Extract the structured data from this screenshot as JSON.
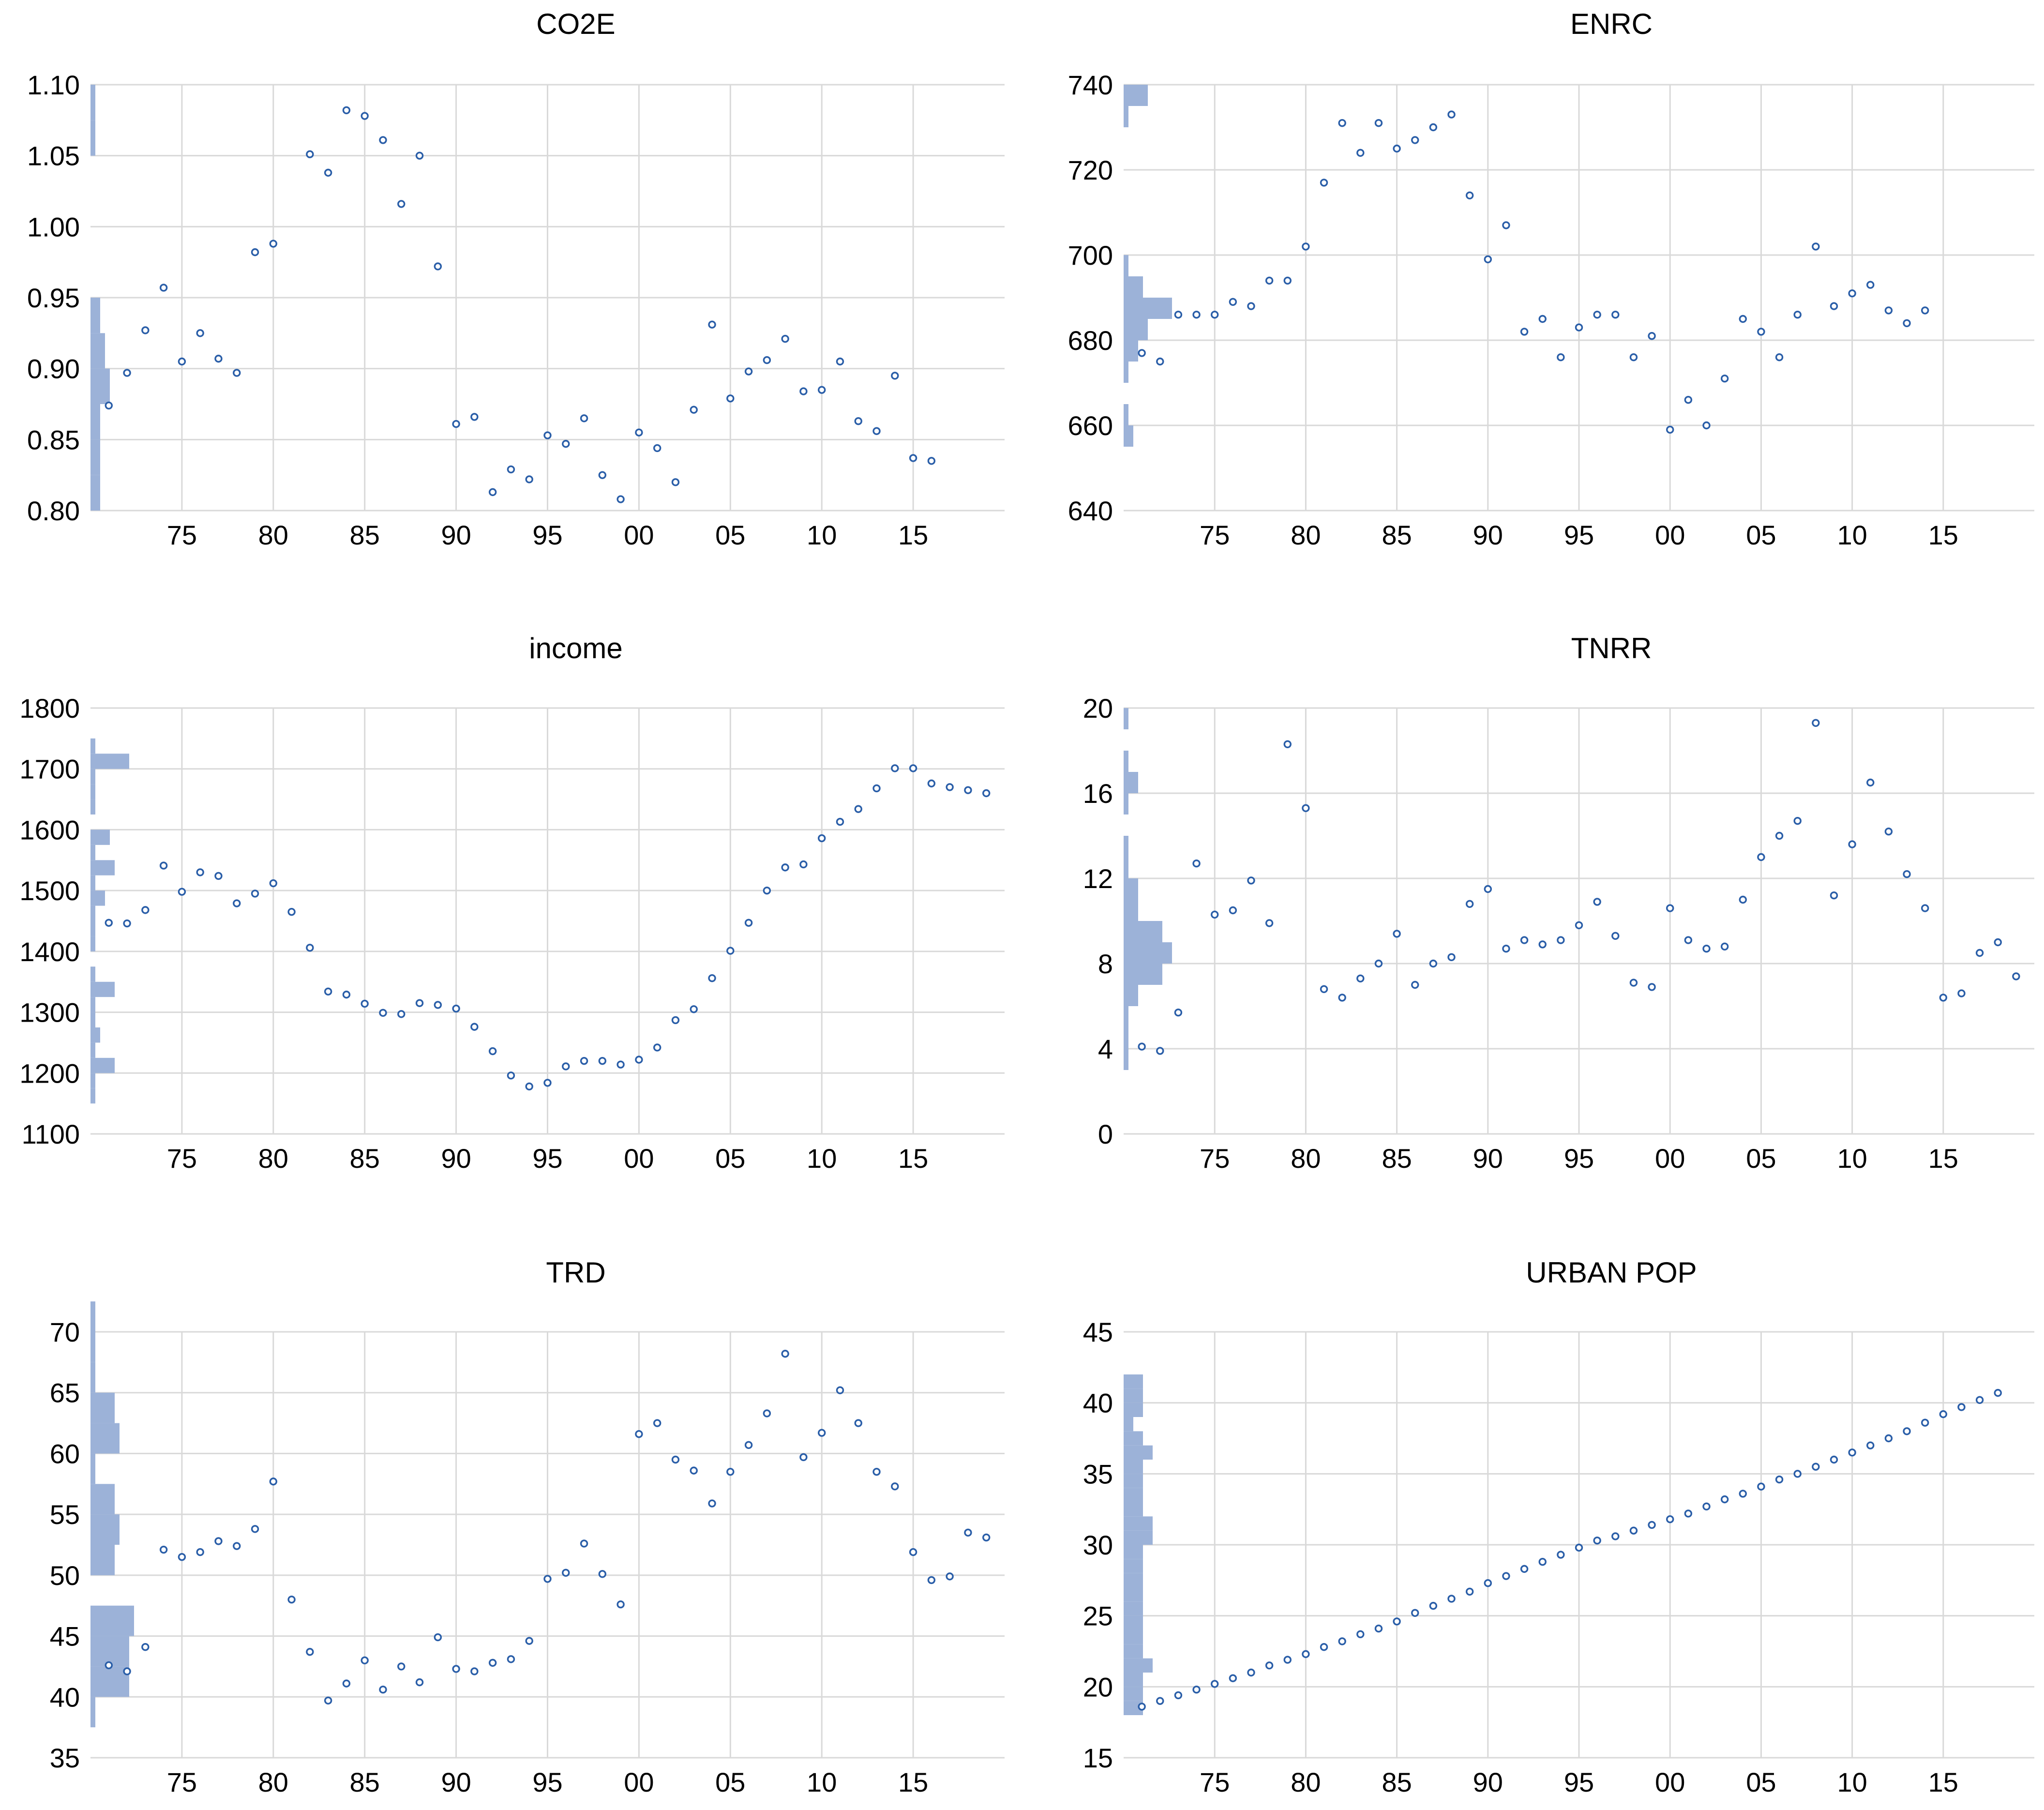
{
  "figure": {
    "style": {
      "point_color": "#2a5ea8",
      "hist_color": "#9cb2d8",
      "grid_color": "#d9d9d9",
      "background": "#ffffff"
    }
  },
  "chart_data": [
    {
      "id": "co2e",
      "type": "scatter",
      "title": "CO2E",
      "x_tick_labels": [
        "75",
        "80",
        "85",
        "90",
        "95",
        "00",
        "05",
        "10",
        "15"
      ],
      "x_tick_years": [
        1975,
        1980,
        1985,
        1990,
        1995,
        2000,
        2005,
        2010,
        2015
      ],
      "y_tick_labels": [
        "0.80",
        "0.85",
        "0.90",
        "0.95",
        "1.00",
        "1.05",
        "1.10"
      ],
      "ylim": [
        0.8,
        1.1
      ],
      "histogram_bins": {
        "start": 0.8,
        "width": 0.025,
        "counts": [
          2,
          2,
          2,
          4,
          3,
          2,
          0,
          0,
          0,
          0,
          1,
          1
        ]
      },
      "series": [
        {
          "name": "CO2E",
          "x": [
            1971,
            1972,
            1973,
            1974,
            1975,
            1976,
            1977,
            1978,
            1979,
            1980,
            1981,
            1982,
            1983,
            1984,
            1985,
            1986,
            1987,
            1988,
            1989,
            1990,
            1991,
            1992,
            1993,
            1994,
            1995,
            1996,
            1997,
            1998,
            1999,
            2000,
            2001,
            2002,
            2003,
            2004,
            2005,
            2006,
            2007,
            2008,
            2009,
            2010,
            2011,
            2012,
            2013,
            2014,
            2015,
            2016
          ],
          "y": [
            0.874,
            0.897,
            0.927,
            0.957,
            0.905,
            0.925,
            0.907,
            0.897,
            0.982,
            0.988,
            null,
            1.051,
            1.038,
            1.082,
            1.078,
            1.061,
            1.016,
            1.05,
            0.972,
            0.861,
            0.866,
            0.813,
            0.829,
            0.822,
            0.853,
            0.847,
            0.865,
            0.825,
            0.808,
            0.855,
            0.844,
            0.82,
            0.871,
            0.931,
            0.879,
            0.898,
            0.906,
            0.921,
            0.884,
            0.885,
            0.905,
            0.863,
            0.856,
            0.895,
            0.837,
            0.835
          ]
        }
      ]
    },
    {
      "id": "enrc",
      "type": "scatter",
      "title": "ENRC",
      "x_tick_labels": [
        "75",
        "80",
        "85",
        "90",
        "95",
        "00",
        "05",
        "10",
        "15"
      ],
      "x_tick_years": [
        1975,
        1980,
        1985,
        1990,
        1995,
        2000,
        2005,
        2010,
        2015
      ],
      "y_tick_labels": [
        "640",
        "660",
        "680",
        "700",
        "720",
        "740"
      ],
      "ylim": [
        640,
        740
      ],
      "histogram_bins": {
        "start": 655,
        "width": 5,
        "counts": [
          2,
          1,
          0,
          1,
          3,
          5,
          10,
          4,
          1,
          0,
          0,
          0,
          0,
          0,
          0,
          1,
          5
        ]
      },
      "series": [
        {
          "name": "ENRC",
          "x": [
            1971,
            1972,
            1973,
            1974,
            1975,
            1976,
            1977,
            1978,
            1979,
            1980,
            1981,
            1982,
            1983,
            1984,
            1985,
            1986,
            1987,
            1988,
            1989,
            1990,
            1991,
            1992,
            1993,
            1994,
            1995,
            1996,
            1997,
            1998,
            1999,
            2000,
            2001,
            2002,
            2003,
            2004,
            2005,
            2006,
            2007,
            2008,
            2009,
            2010,
            2011,
            2012,
            2013,
            2014
          ],
          "y": [
            677,
            675,
            686,
            686,
            686,
            689,
            688,
            694,
            694,
            702,
            717,
            731,
            724,
            731,
            725,
            727,
            730,
            733,
            714,
            699,
            707,
            682,
            685,
            676,
            683,
            686,
            686,
            676,
            681,
            659,
            666,
            660,
            671,
            685,
            682,
            676,
            686,
            702,
            688,
            691,
            693,
            687,
            684,
            687
          ]
        }
      ]
    },
    {
      "id": "income",
      "type": "scatter",
      "title": "income",
      "x_tick_labels": [
        "75",
        "80",
        "85",
        "90",
        "95",
        "00",
        "05",
        "10",
        "15"
      ],
      "x_tick_years": [
        1975,
        1980,
        1985,
        1990,
        1995,
        2000,
        2005,
        2010,
        2015
      ],
      "y_tick_labels": [
        "1100",
        "1200",
        "1300",
        "1400",
        "1500",
        "1600",
        "1700",
        "1800"
      ],
      "ylim": [
        1100,
        1800
      ],
      "histogram_bins": {
        "start": 1150,
        "width": 25,
        "counts": [
          1,
          1,
          5,
          1,
          2,
          1,
          1,
          5,
          1,
          0,
          1,
          1,
          1,
          3,
          1,
          5,
          1,
          4,
          0,
          1,
          1,
          1,
          8,
          1
        ]
      },
      "series": [
        {
          "name": "income",
          "x": [
            1971,
            1972,
            1973,
            1974,
            1975,
            1976,
            1977,
            1978,
            1979,
            1980,
            1981,
            1982,
            1983,
            1984,
            1985,
            1986,
            1987,
            1988,
            1989,
            1990,
            1991,
            1992,
            1993,
            1994,
            1995,
            1996,
            1997,
            1998,
            1999,
            2000,
            2001,
            2002,
            2003,
            2004,
            2005,
            2006,
            2007,
            2008,
            2009,
            2010,
            2011,
            2012,
            2013,
            2014,
            2015,
            2016,
            2017,
            2018,
            2019
          ],
          "y": [
            1447,
            1446,
            1468,
            1541,
            1498,
            1530,
            1524,
            1479,
            1495,
            1512,
            1465,
            1406,
            1334,
            1329,
            1314,
            1299,
            1297,
            1315,
            1312,
            1306,
            1276,
            1236,
            1196,
            1178,
            1184,
            1211,
            1220,
            1220,
            1214,
            1222,
            1242,
            1287,
            1305,
            1356,
            1401,
            1447,
            1500,
            1538,
            1543,
            1586,
            1613,
            1634,
            1668,
            1701,
            1701,
            1676,
            1670,
            1665,
            1660
          ]
        }
      ]
    },
    {
      "id": "tnrr",
      "type": "scatter",
      "title": "TNRR",
      "x_tick_labels": [
        "75",
        "80",
        "85",
        "90",
        "95",
        "00",
        "05",
        "10",
        "15"
      ],
      "x_tick_years": [
        1975,
        1980,
        1985,
        1990,
        1995,
        2000,
        2005,
        2010,
        2015
      ],
      "y_tick_labels": [
        "0",
        "4",
        "8",
        "12",
        "16",
        "20"
      ],
      "ylim": [
        0,
        20
      ],
      "histogram_bins": {
        "start": 3,
        "width": 1,
        "counts": [
          1,
          1,
          1,
          3,
          8,
          10,
          8,
          3,
          3,
          1,
          1,
          0,
          1,
          3,
          1,
          0,
          1
        ]
      },
      "series": [
        {
          "name": "TNRR",
          "x": [
            1971,
            1972,
            1973,
            1974,
            1975,
            1976,
            1977,
            1978,
            1979,
            1980,
            1981,
            1982,
            1983,
            1984,
            1985,
            1986,
            1987,
            1988,
            1989,
            1990,
            1991,
            1992,
            1993,
            1994,
            1995,
            1996,
            1997,
            1998,
            1999,
            2000,
            2001,
            2002,
            2003,
            2004,
            2005,
            2006,
            2007,
            2008,
            2009,
            2010,
            2011,
            2012,
            2013,
            2014,
            2015,
            2016,
            2017,
            2018,
            2019
          ],
          "y": [
            4.1,
            3.9,
            5.7,
            12.7,
            10.3,
            10.5,
            11.9,
            9.9,
            18.3,
            15.3,
            6.8,
            6.4,
            7.3,
            8.0,
            9.4,
            7.0,
            8.0,
            8.3,
            10.8,
            11.5,
            8.7,
            9.1,
            8.9,
            9.1,
            9.8,
            10.9,
            9.3,
            7.1,
            6.9,
            10.6,
            9.1,
            8.7,
            8.8,
            11.0,
            13.0,
            14.0,
            14.7,
            19.3,
            11.2,
            13.6,
            16.5,
            14.2,
            12.2,
            10.6,
            6.4,
            6.6,
            8.5,
            9.0,
            7.4
          ]
        }
      ]
    },
    {
      "id": "trd",
      "type": "scatter",
      "title": "TRD",
      "x_tick_labels": [
        "75",
        "80",
        "85",
        "90",
        "95",
        "00",
        "05",
        "10",
        "15"
      ],
      "x_tick_years": [
        1975,
        1980,
        1985,
        1990,
        1995,
        2000,
        2005,
        2010,
        2015
      ],
      "y_tick_labels": [
        "35",
        "40",
        "45",
        "50",
        "55",
        "60",
        "65",
        "70"
      ],
      "ylim": [
        35,
        70
      ],
      "histogram_bins": {
        "start": 37.5,
        "width": 2.5,
        "counts": [
          1,
          8,
          8,
          9,
          0,
          5,
          6,
          5,
          1,
          6,
          5,
          1,
          1,
          1
        ]
      },
      "series": [
        {
          "name": "TRD",
          "x": [
            1971,
            1972,
            1973,
            1974,
            1975,
            1976,
            1977,
            1978,
            1979,
            1980,
            1981,
            1982,
            1983,
            1984,
            1985,
            1986,
            1987,
            1988,
            1989,
            1990,
            1991,
            1992,
            1993,
            1994,
            1995,
            1996,
            1997,
            1998,
            1999,
            2000,
            2001,
            2002,
            2003,
            2004,
            2005,
            2006,
            2007,
            2008,
            2009,
            2010,
            2011,
            2012,
            2013,
            2014,
            2015,
            2016,
            2017,
            2018,
            2019
          ],
          "y": [
            42.6,
            42.1,
            44.1,
            52.1,
            51.5,
            51.9,
            52.8,
            52.4,
            53.8,
            57.7,
            48.0,
            43.7,
            39.7,
            41.1,
            43.0,
            40.6,
            42.5,
            41.2,
            44.9,
            42.3,
            42.1,
            42.8,
            43.1,
            44.6,
            49.7,
            50.2,
            52.6,
            50.1,
            47.6,
            61.6,
            62.5,
            59.5,
            58.6,
            55.9,
            58.5,
            60.7,
            63.3,
            68.2,
            59.7,
            61.7,
            65.2,
            62.5,
            58.5,
            57.3,
            51.9,
            49.6,
            49.9,
            53.5,
            53.1
          ]
        }
      ]
    },
    {
      "id": "urban_pop",
      "type": "scatter",
      "title": "URBAN POP",
      "x_tick_labels": [
        "75",
        "80",
        "85",
        "90",
        "95",
        "00",
        "05",
        "10",
        "15"
      ],
      "x_tick_years": [
        1975,
        1980,
        1985,
        1990,
        1995,
        2000,
        2005,
        2010,
        2015
      ],
      "y_tick_labels": [
        "15",
        "20",
        "25",
        "30",
        "35",
        "40",
        "45"
      ],
      "ylim": [
        15,
        45
      ],
      "histogram_bins": {
        "start": 18,
        "width": 1,
        "counts": [
          4,
          4,
          4,
          6,
          4,
          4,
          4,
          4,
          4,
          4,
          4,
          4,
          6,
          6,
          4,
          4,
          4,
          4,
          6,
          4,
          2,
          4,
          4,
          4
        ]
      },
      "series": [
        {
          "name": "URBAN POP",
          "x": [
            1971,
            1972,
            1973,
            1974,
            1975,
            1976,
            1977,
            1978,
            1979,
            1980,
            1981,
            1982,
            1983,
            1984,
            1985,
            1986,
            1987,
            1988,
            1989,
            1990,
            1991,
            1992,
            1993,
            1994,
            1995,
            1996,
            1997,
            1998,
            1999,
            2000,
            2001,
            2002,
            2003,
            2004,
            2005,
            2006,
            2007,
            2008,
            2009,
            2010,
            2011,
            2012,
            2013,
            2014,
            2015,
            2016,
            2017,
            2018,
            2019
          ],
          "y": [
            18.6,
            19.0,
            19.4,
            19.8,
            20.2,
            20.6,
            21.0,
            21.5,
            21.9,
            22.3,
            22.8,
            23.2,
            23.7,
            24.1,
            24.6,
            25.2,
            25.7,
            26.2,
            26.7,
            27.3,
            27.8,
            28.3,
            28.8,
            29.3,
            29.8,
            30.3,
            30.6,
            31.0,
            31.4,
            31.8,
            32.2,
            32.7,
            33.2,
            33.6,
            34.1,
            34.6,
            35.0,
            35.5,
            36.0,
            36.5,
            37.0,
            37.5,
            38.0,
            38.6,
            39.2,
            39.7,
            40.2,
            40.7,
            null
          ]
        }
      ]
    }
  ]
}
